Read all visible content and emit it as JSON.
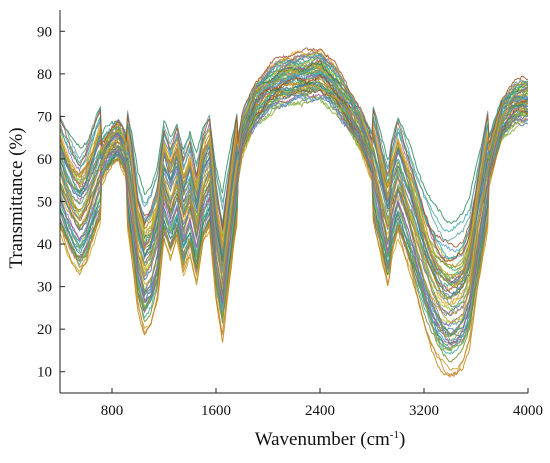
{
  "chart_data": {
    "type": "line",
    "title": "",
    "xlabel": "Wavenumber (cm",
    "xlabel_sup": "-1",
    "xlabel_suffix": ")",
    "ylabel": "Transmittance (%)",
    "xlim": [
      400,
      4000
    ],
    "ylim": [
      5,
      95
    ],
    "x_ticks": [
      800,
      1600,
      2400,
      3200,
      4000
    ],
    "y_ticks": [
      10,
      20,
      30,
      40,
      50,
      60,
      70,
      80,
      90
    ],
    "grid": false,
    "legend": "none",
    "series_count": 60,
    "series_colors": [
      "#4a6fa5",
      "#8fa832",
      "#7ab648",
      "#c9a227",
      "#5b9bd5",
      "#a65c8c",
      "#3fa9a0",
      "#8c7d5b",
      "#6b8e23",
      "#b8860b",
      "#708090",
      "#9acd32",
      "#4682b4",
      "#cd853f",
      "#2e8b57",
      "#8b6fb0",
      "#20b2aa",
      "#daa520",
      "#5f9ea0",
      "#a0522d"
    ],
    "mean_spectrum": {
      "x": [
        400,
        450,
        500,
        550,
        600,
        650,
        700,
        750,
        800,
        850,
        900,
        950,
        1000,
        1050,
        1100,
        1150,
        1200,
        1250,
        1300,
        1350,
        1400,
        1450,
        1500,
        1550,
        1600,
        1650,
        1700,
        1750,
        1800,
        1900,
        2000,
        2100,
        2200,
        2300,
        2400,
        2500,
        2600,
        2700,
        2800,
        2850,
        2900,
        2925,
        2950,
        3000,
        3050,
        3100,
        3150,
        3200,
        3250,
        3300,
        3350,
        3400,
        3450,
        3500,
        3550,
        3600,
        3700,
        3800,
        3900,
        4000
      ],
      "y": [
        58,
        54,
        51,
        49,
        51,
        55,
        59,
        62,
        64,
        65,
        62,
        53,
        42,
        37,
        39,
        44,
        56,
        52,
        56,
        49,
        53,
        47,
        55,
        58,
        44,
        36,
        47,
        57,
        66,
        73,
        76,
        78,
        79,
        79,
        80,
        77,
        73,
        68,
        61,
        55,
        49,
        46,
        52,
        57,
        53,
        49,
        44,
        39,
        35,
        32,
        30,
        29,
        29.5,
        31,
        35,
        44,
        60,
        70,
        73,
        74
      ]
    },
    "spread_range": [
      -14,
      12
    ]
  }
}
